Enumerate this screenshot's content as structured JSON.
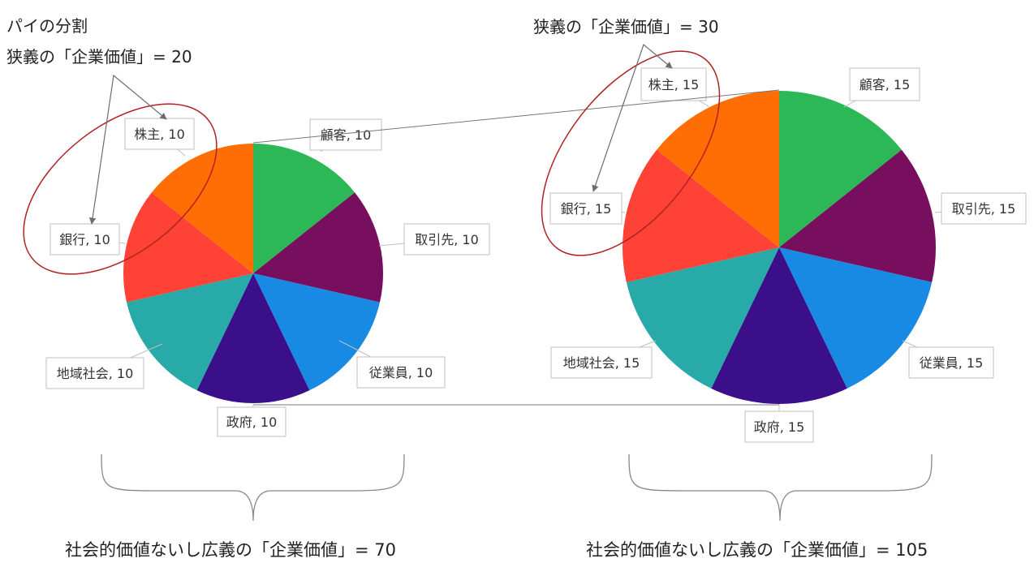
{
  "header_left_title": "パイの分割",
  "header_left_subtitle": "狭義の「企業価値」= 20",
  "header_right": "狭義の「企業価値」= 30",
  "total_left": "社会的価値ないし広義の「企業価値」= 70",
  "total_right": "社会的価値ないし広義の「企業価値」= 105",
  "colors": {
    "顧客": "#2db858",
    "取引先": "#780e5e",
    "従業員": "#198ae4",
    "政府": "#3c0f8a",
    "地域社会": "#27aaa8",
    "銀行": "#fe4236",
    "株主": "#ff6e04",
    "ellipse": "#b22222",
    "connector": "#777777"
  },
  "chart_data": [
    {
      "type": "pie",
      "title": "",
      "labels": [
        "顧客",
        "取引先",
        "従業員",
        "政府",
        "地域社会",
        "銀行",
        "株主"
      ],
      "values": [
        10,
        10,
        10,
        10,
        10,
        10,
        10
      ],
      "data_labels": [
        "顧客, 10",
        "取引先, 10",
        "従業員, 10",
        "政府, 10",
        "地域社会, 10",
        "銀行, 10",
        "株主, 10"
      ]
    },
    {
      "type": "pie",
      "title": "",
      "labels": [
        "顧客",
        "取引先",
        "従業員",
        "政府",
        "地域社会",
        "銀行",
        "株主"
      ],
      "values": [
        15,
        15,
        15,
        15,
        15,
        15,
        15
      ],
      "data_labels": [
        "顧客, 15",
        "取引先, 15",
        "従業員, 15",
        "政府, 15",
        "地域社会, 15",
        "銀行, 15",
        "株主, 15"
      ]
    }
  ]
}
